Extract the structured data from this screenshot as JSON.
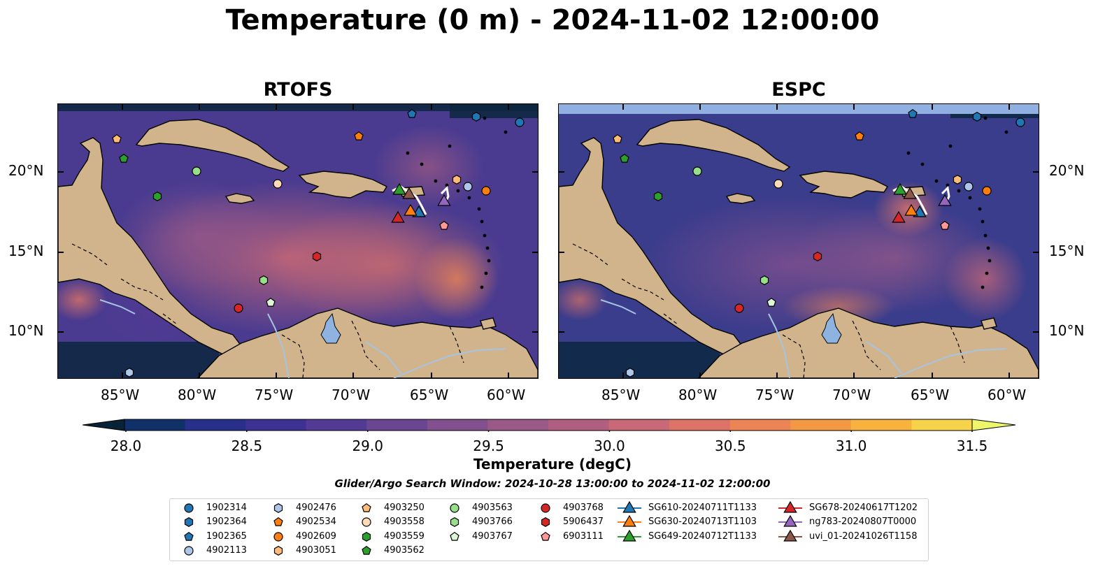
{
  "figure": {
    "title": "Temperature (0 m) - 2024-11-02 12:00:00",
    "panels": [
      {
        "name": "RTOFS"
      },
      {
        "name": "ESPC"
      }
    ],
    "lon_ticks": [
      "85°W",
      "80°W",
      "75°W",
      "70°W",
      "65°W",
      "60°W"
    ],
    "lat_ticks": [
      "20°N",
      "15°N",
      "10°N"
    ],
    "colorbar": {
      "label": "Temperature (degC)",
      "min": 28.0,
      "max": 31.5,
      "ticks": [
        "28.0",
        "28.5",
        "29.0",
        "29.5",
        "30.0",
        "30.5",
        "31.0",
        "31.5"
      ],
      "colors": [
        "#0a2236",
        "#10306a",
        "#28308c",
        "#3d3294",
        "#533a94",
        "#6a4592",
        "#82508e",
        "#9a5a88",
        "#b05f80",
        "#c96876",
        "#dc7366",
        "#ec8456",
        "#f59845",
        "#f8b33f",
        "#f7d24b",
        "#eef66a"
      ]
    },
    "search_window": "Glider/Argo Search Window: 2024-10-28 13:00:00 to 2024-11-02 12:00:00"
  },
  "legend": {
    "items": [
      {
        "label": "1902314",
        "marker": "circle",
        "color": "#1f77b4"
      },
      {
        "label": "1902364",
        "marker": "hexagon",
        "color": "#1f77b4"
      },
      {
        "label": "1902365",
        "marker": "pentagon",
        "color": "#1f77b4"
      },
      {
        "label": "4902113",
        "marker": "circle",
        "color": "#aec7e8"
      },
      {
        "label": "4902476",
        "marker": "hexagon",
        "color": "#aec7e8"
      },
      {
        "label": "4902534",
        "marker": "pentagon",
        "color": "#ff7f0e"
      },
      {
        "label": "4902609",
        "marker": "circle",
        "color": "#ff7f0e"
      },
      {
        "label": "4903051",
        "marker": "hexagon",
        "color": "#ffbb78"
      },
      {
        "label": "4903250",
        "marker": "pentagon",
        "color": "#ffbb78"
      },
      {
        "label": "4903558",
        "marker": "circle",
        "color": "#ffdcb8"
      },
      {
        "label": "4903559",
        "marker": "hexagon",
        "color": "#2ca02c"
      },
      {
        "label": "4903562",
        "marker": "pentagon",
        "color": "#2ca02c"
      },
      {
        "label": "4903563",
        "marker": "circle",
        "color": "#98df8a"
      },
      {
        "label": "4903766",
        "marker": "hexagon",
        "color": "#98df8a"
      },
      {
        "label": "4903767",
        "marker": "pentagon",
        "color": "#dff5d6"
      },
      {
        "label": "4903768",
        "marker": "circle",
        "color": "#d62728"
      },
      {
        "label": "5906437",
        "marker": "hexagon",
        "color": "#d62728"
      },
      {
        "label": "6903111",
        "marker": "pentagon",
        "color": "#ff9896"
      },
      {
        "label": "SG610-20240711T1133",
        "marker": "triangle",
        "color": "#1f77b4"
      },
      {
        "label": "SG630-20240713T1103",
        "marker": "triangle",
        "color": "#ff7f0e"
      },
      {
        "label": "SG649-20240712T1133",
        "marker": "triangle",
        "color": "#2ca02c"
      },
      {
        "label": "SG678-20240617T1202",
        "marker": "triangle",
        "color": "#d62728"
      },
      {
        "label": "ng783-20240807T0000",
        "marker": "triangle",
        "color": "#9467bd"
      },
      {
        "label": "uvi_01-20241026T1158",
        "marker": "triangle",
        "color": "#8c564b"
      }
    ]
  },
  "map_colors": {
    "land": "#d2b48c",
    "lake": "#8fb3e0",
    "river": "#a6c3e0",
    "coast": "#000000"
  }
}
